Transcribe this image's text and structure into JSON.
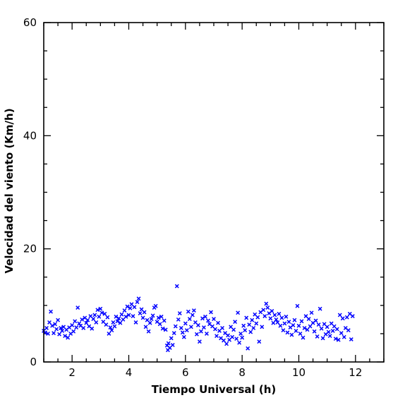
{
  "chart_data": {
    "type": "scatter",
    "title": "",
    "xlabel": "Tiempo Universal (h)",
    "ylabel": "Velocidad del viento (Km/h)",
    "xlim": [
      1,
      13
    ],
    "ylim": [
      0,
      60
    ],
    "xticks": [
      2,
      4,
      6,
      8,
      10,
      12
    ],
    "yticks": [
      0,
      20,
      40,
      60
    ],
    "xtick_labels": [
      "2",
      "4",
      "6",
      "8",
      "10",
      "12"
    ],
    "ytick_labels": [
      "0",
      "20",
      "40",
      "60"
    ],
    "grid": false,
    "legend": false,
    "marker": "x",
    "marker_color": "#0000ff",
    "series": [
      {
        "points": [
          [
            1.0,
            5.5
          ],
          [
            1.05,
            5.2
          ],
          [
            1.1,
            6.0
          ],
          [
            1.15,
            5.0
          ],
          [
            1.2,
            7.0
          ],
          [
            1.25,
            8.9
          ],
          [
            1.3,
            6.4
          ],
          [
            1.35,
            5.1
          ],
          [
            1.4,
            6.7
          ],
          [
            1.45,
            5.8
          ],
          [
            1.5,
            7.4
          ],
          [
            1.55,
            4.9
          ],
          [
            1.6,
            6.0
          ],
          [
            1.65,
            5.5
          ],
          [
            1.7,
            6.2
          ],
          [
            1.75,
            4.6
          ],
          [
            1.8,
            5.7
          ],
          [
            1.85,
            4.3
          ],
          [
            1.9,
            6.1
          ],
          [
            1.95,
            5.0
          ],
          [
            2.0,
            6.5
          ],
          [
            2.05,
            5.4
          ],
          [
            2.1,
            7.2
          ],
          [
            2.15,
            6.1
          ],
          [
            2.2,
            9.6
          ],
          [
            2.25,
            6.8
          ],
          [
            2.3,
            6.4
          ],
          [
            2.35,
            7.5
          ],
          [
            2.4,
            6.0
          ],
          [
            2.45,
            7.8
          ],
          [
            2.5,
            6.9
          ],
          [
            2.55,
            7.4
          ],
          [
            2.6,
            6.3
          ],
          [
            2.65,
            8.1
          ],
          [
            2.7,
            5.9
          ],
          [
            2.75,
            7.6
          ],
          [
            2.8,
            8.3
          ],
          [
            2.85,
            7.0
          ],
          [
            2.9,
            9.2
          ],
          [
            2.95,
            8.0
          ],
          [
            3.0,
            9.4
          ],
          [
            3.05,
            8.7
          ],
          [
            3.1,
            7.1
          ],
          [
            3.15,
            8.5
          ],
          [
            3.2,
            6.6
          ],
          [
            3.25,
            7.9
          ],
          [
            3.3,
            5.0
          ],
          [
            3.35,
            6.1
          ],
          [
            3.4,
            5.6
          ],
          [
            3.45,
            7.0
          ],
          [
            3.5,
            6.3
          ],
          [
            3.55,
            8.0
          ],
          [
            3.6,
            7.2
          ],
          [
            3.65,
            7.7
          ],
          [
            3.7,
            6.9
          ],
          [
            3.75,
            8.4
          ],
          [
            3.8,
            7.5
          ],
          [
            3.85,
            9.1
          ],
          [
            3.9,
            8.0
          ],
          [
            3.95,
            9.8
          ],
          [
            4.0,
            8.3
          ],
          [
            4.05,
            9.5
          ],
          [
            4.1,
            10.2
          ],
          [
            4.15,
            8.1
          ],
          [
            4.2,
            9.7
          ],
          [
            4.25,
            7.0
          ],
          [
            4.3,
            10.6
          ],
          [
            4.35,
            11.2
          ],
          [
            4.4,
            8.6
          ],
          [
            4.45,
            9.3
          ],
          [
            4.5,
            7.8
          ],
          [
            4.55,
            8.8
          ],
          [
            4.6,
            6.2
          ],
          [
            4.65,
            7.4
          ],
          [
            4.7,
            5.4
          ],
          [
            4.75,
            6.9
          ],
          [
            4.8,
            7.6
          ],
          [
            4.85,
            8.2
          ],
          [
            4.9,
            9.6
          ],
          [
            4.95,
            9.9
          ],
          [
            5.0,
            7.1
          ],
          [
            5.05,
            7.8
          ],
          [
            5.1,
            6.7
          ],
          [
            5.15,
            8.0
          ],
          [
            5.2,
            5.9
          ],
          [
            5.25,
            7.3
          ],
          [
            5.3,
            5.7
          ],
          [
            5.35,
            2.9
          ],
          [
            5.38,
            2.1
          ],
          [
            5.4,
            3.3
          ],
          [
            5.45,
            2.5
          ],
          [
            5.5,
            4.2
          ],
          [
            5.55,
            3.0
          ],
          [
            5.6,
            5.1
          ],
          [
            5.65,
            6.3
          ],
          [
            5.7,
            13.4
          ],
          [
            5.75,
            7.5
          ],
          [
            5.8,
            8.6
          ],
          [
            5.85,
            6.0
          ],
          [
            5.9,
            5.2
          ],
          [
            5.95,
            4.4
          ],
          [
            6.0,
            6.8
          ],
          [
            6.05,
            5.6
          ],
          [
            6.1,
            8.9
          ],
          [
            6.15,
            7.6
          ],
          [
            6.2,
            6.2
          ],
          [
            6.25,
            8.3
          ],
          [
            6.3,
            9.1
          ],
          [
            6.35,
            7.0
          ],
          [
            6.4,
            4.9
          ],
          [
            6.45,
            6.5
          ],
          [
            6.5,
            3.6
          ],
          [
            6.55,
            5.4
          ],
          [
            6.6,
            7.7
          ],
          [
            6.65,
            6.1
          ],
          [
            6.7,
            8.0
          ],
          [
            6.75,
            5.0
          ],
          [
            6.8,
            7.3
          ],
          [
            6.85,
            6.7
          ],
          [
            6.9,
            8.8
          ],
          [
            6.95,
            6.3
          ],
          [
            7.0,
            7.6
          ],
          [
            7.05,
            5.8
          ],
          [
            7.1,
            4.6
          ],
          [
            7.15,
            6.9
          ],
          [
            7.2,
            5.5
          ],
          [
            7.25,
            4.2
          ],
          [
            7.3,
            6.0
          ],
          [
            7.35,
            3.8
          ],
          [
            7.4,
            5.1
          ],
          [
            7.45,
            3.2
          ],
          [
            7.5,
            4.7
          ],
          [
            7.55,
            3.9
          ],
          [
            7.6,
            6.2
          ],
          [
            7.65,
            4.4
          ],
          [
            7.7,
            5.7
          ],
          [
            7.75,
            7.1
          ],
          [
            7.8,
            4.1
          ],
          [
            7.85,
            8.7
          ],
          [
            7.9,
            3.4
          ],
          [
            7.95,
            5.0
          ],
          [
            8.0,
            4.3
          ],
          [
            8.05,
            6.4
          ],
          [
            8.1,
            5.6
          ],
          [
            8.15,
            7.8
          ],
          [
            8.2,
            2.4
          ],
          [
            8.25,
            6.6
          ],
          [
            8.3,
            5.3
          ],
          [
            8.35,
            7.4
          ],
          [
            8.4,
            6.0
          ],
          [
            8.45,
            8.4
          ],
          [
            8.5,
            6.8
          ],
          [
            8.55,
            7.9
          ],
          [
            8.6,
            3.6
          ],
          [
            8.65,
            8.8
          ],
          [
            8.7,
            6.2
          ],
          [
            8.75,
            9.2
          ],
          [
            8.8,
            8.1
          ],
          [
            8.85,
            10.3
          ],
          [
            8.9,
            9.6
          ],
          [
            8.95,
            8.6
          ],
          [
            9.0,
            7.7
          ],
          [
            9.05,
            9.0
          ],
          [
            9.1,
            6.9
          ],
          [
            9.15,
            8.3
          ],
          [
            9.2,
            7.5
          ],
          [
            9.25,
            7.0
          ],
          [
            9.3,
            8.5
          ],
          [
            9.35,
            6.4
          ],
          [
            9.4,
            7.8
          ],
          [
            9.45,
            5.6
          ],
          [
            9.5,
            6.8
          ],
          [
            9.55,
            8.0
          ],
          [
            9.6,
            5.2
          ],
          [
            9.65,
            7.1
          ],
          [
            9.7,
            6.1
          ],
          [
            9.75,
            4.8
          ],
          [
            9.8,
            6.5
          ],
          [
            9.85,
            7.4
          ],
          [
            9.9,
            5.5
          ],
          [
            9.95,
            9.9
          ],
          [
            10.0,
            6.4
          ],
          [
            10.05,
            5.0
          ],
          [
            10.1,
            7.2
          ],
          [
            10.15,
            4.3
          ],
          [
            10.2,
            6.0
          ],
          [
            10.25,
            8.1
          ],
          [
            10.3,
            5.7
          ],
          [
            10.35,
            7.6
          ],
          [
            10.4,
            6.3
          ],
          [
            10.45,
            8.7
          ],
          [
            10.5,
            6.9
          ],
          [
            10.55,
            5.4
          ],
          [
            10.6,
            7.3
          ],
          [
            10.65,
            4.5
          ],
          [
            10.7,
            6.6
          ],
          [
            10.75,
            9.4
          ],
          [
            10.8,
            5.9
          ],
          [
            10.85,
            4.2
          ],
          [
            10.9,
            6.7
          ],
          [
            10.95,
            4.9
          ],
          [
            11.0,
            6.2
          ],
          [
            11.05,
            5.3
          ],
          [
            11.1,
            4.6
          ],
          [
            11.15,
            6.8
          ],
          [
            11.2,
            5.5
          ],
          [
            11.25,
            6.3
          ],
          [
            11.3,
            4.1
          ],
          [
            11.35,
            5.8
          ],
          [
            11.4,
            3.9
          ],
          [
            11.45,
            8.3
          ],
          [
            11.5,
            5.1
          ],
          [
            11.55,
            7.7
          ],
          [
            11.6,
            4.4
          ],
          [
            11.65,
            6.0
          ],
          [
            11.7,
            7.9
          ],
          [
            11.75,
            5.6
          ],
          [
            11.8,
            8.5
          ],
          [
            11.85,
            4.0
          ],
          [
            11.9,
            8.1
          ]
        ]
      }
    ]
  }
}
